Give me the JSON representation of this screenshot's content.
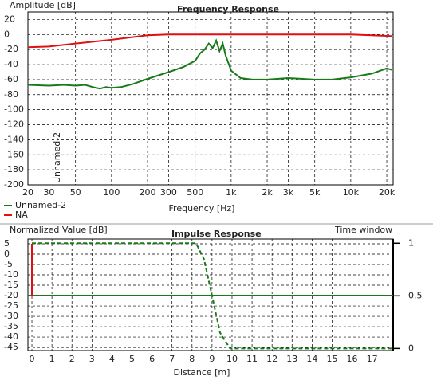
{
  "chart_data": [
    {
      "type": "line",
      "title": "Frequency Response",
      "ylabel": "Amplitude [dB]",
      "xlabel": "Frequency [Hz]",
      "xscale": "log",
      "grid": true,
      "legend": "bottom-left",
      "xlim": [
        20,
        22600
      ],
      "ylim": [
        -200,
        30
      ],
      "xticks": [
        20,
        30,
        50,
        100,
        200,
        300,
        500,
        {
          "value": 1000,
          "label": "1k"
        },
        {
          "value": 2000,
          "label": "2k"
        },
        {
          "value": 3000,
          "label": "3k"
        },
        {
          "value": 5000,
          "label": "5k"
        },
        {
          "value": 10000,
          "label": "10k"
        },
        {
          "value": 20000,
          "label": "20k"
        }
      ],
      "yticks": [
        20,
        0,
        -20,
        -40,
        -60,
        -80,
        -100,
        -120,
        -140,
        -160,
        -180,
        -200
      ],
      "series": [
        {
          "name": "Unnamed-2",
          "color": "#1a7a1a",
          "x": [
            20,
            30,
            40,
            50,
            60,
            70,
            80,
            90,
            100,
            120,
            150,
            200,
            300,
            400,
            500,
            550,
            600,
            650,
            700,
            750,
            800,
            850,
            900,
            1000,
            1200,
            1500,
            2000,
            3000,
            5000,
            7000,
            10000,
            15000,
            20000,
            22000
          ],
          "values": [
            -67,
            -68,
            -67,
            -68,
            -67,
            -70,
            -72,
            -70,
            -71,
            -70,
            -66,
            -59,
            -50,
            -43,
            -35,
            -25,
            -20,
            -12,
            -18,
            -8,
            -22,
            -12,
            -28,
            -48,
            -58,
            -60,
            -60,
            -58,
            -60,
            -60,
            -57,
            -52,
            -45,
            -47
          ]
        },
        {
          "name": "NA",
          "color": "#e01010",
          "x": [
            20,
            30,
            50,
            100,
            200,
            300,
            1000,
            10000,
            22000
          ],
          "values": [
            -17,
            -16,
            -12,
            -7,
            -1,
            0,
            0,
            0,
            -2
          ]
        }
      ]
    },
    {
      "type": "line",
      "title": "Impulse Response",
      "ylabel": "Normalized Value [dB]",
      "y2label": "Time window",
      "xlabel": "Distance [m]",
      "grid": true,
      "xlim": [
        -0.2,
        18.05
      ],
      "ylim": [
        -46.5,
        7.3
      ],
      "y2lim": [
        -0.02,
        1.04
      ],
      "xticks": [
        0,
        1,
        2,
        3,
        4,
        5,
        6,
        7,
        8,
        9,
        10,
        11,
        12,
        13,
        14,
        15,
        16,
        17
      ],
      "yticks": [
        5,
        0,
        -5,
        -10,
        -15,
        -20,
        -25,
        -30,
        -35,
        -40,
        -45
      ],
      "y2ticks": [
        1,
        0.5,
        0
      ],
      "series": [
        {
          "name": "Unnamed-2",
          "color": "#1a7a1a",
          "x": [
            -0.2,
            18.05
          ],
          "values": [
            -20,
            -20
          ]
        },
        {
          "name": "NA",
          "color": "#e01010",
          "x": [
            0,
            0
          ],
          "values": [
            -20,
            5
          ]
        },
        {
          "name": "Time window",
          "color": "#1a7a1a",
          "axis": "y2",
          "linestyle": "dashed",
          "x": [
            0,
            8.2,
            8.6,
            9.0,
            9.4,
            9.9,
            18
          ],
          "values": [
            1,
            1,
            0.85,
            0.5,
            0.15,
            0,
            0
          ]
        }
      ]
    }
  ]
}
